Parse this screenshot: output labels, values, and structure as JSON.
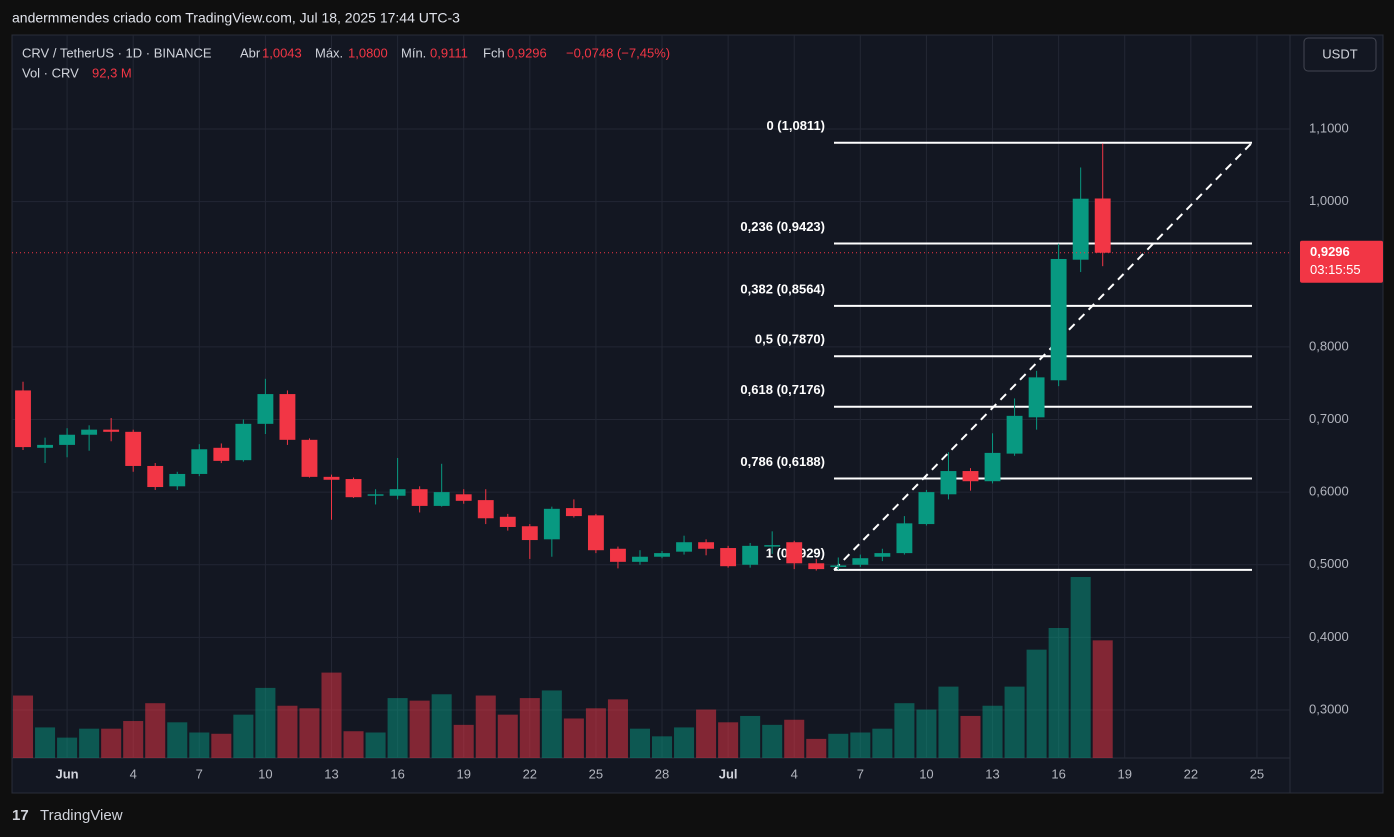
{
  "header": "andermmendes criado com TradingView.com, Jul 18, 2025 17:44 UTC-3",
  "legend": {
    "symbol": "CRV / TetherUS · 1D · BINANCE",
    "open_label": "Abr",
    "open": "1,0043",
    "high_label": "Máx.",
    "high": "1,0800",
    "low_label": "Mín.",
    "low": "0,9111",
    "close_label": "Fch",
    "close": "0,9296",
    "change": "−0,0748 (−7,45%)",
    "volume_label": "Vol · CRV",
    "volume": "92,3 M"
  },
  "currency_button": "USDT",
  "footer_logo": "TradingView",
  "chart_data": {
    "type": "candlestick",
    "colors": {
      "up": "#089981",
      "down": "#f23645"
    },
    "grid": true,
    "x": [
      "2025-05-30",
      "2025-05-31",
      "2025-06-01",
      "2025-06-02",
      "2025-06-03",
      "2025-06-04",
      "2025-06-05",
      "2025-06-06",
      "2025-06-07",
      "2025-06-08",
      "2025-06-09",
      "2025-06-10",
      "2025-06-11",
      "2025-06-12",
      "2025-06-13",
      "2025-06-14",
      "2025-06-15",
      "2025-06-16",
      "2025-06-17",
      "2025-06-18",
      "2025-06-19",
      "2025-06-20",
      "2025-06-21",
      "2025-06-22",
      "2025-06-23",
      "2025-06-24",
      "2025-06-25",
      "2025-06-26",
      "2025-06-27",
      "2025-06-28",
      "2025-06-29",
      "2025-06-30",
      "2025-07-01",
      "2025-07-02",
      "2025-07-03",
      "2025-07-04",
      "2025-07-05",
      "2025-07-06",
      "2025-07-07",
      "2025-07-08",
      "2025-07-09",
      "2025-07-10",
      "2025-07-11",
      "2025-07-12",
      "2025-07-13",
      "2025-07-14",
      "2025-07-15",
      "2025-07-16",
      "2025-07-17",
      "2025-07-18"
    ],
    "open": [
      0.74,
      0.661,
      0.665,
      0.679,
      0.686,
      0.683,
      0.636,
      0.608,
      0.625,
      0.661,
      0.644,
      0.694,
      0.735,
      0.672,
      0.621,
      0.618,
      0.595,
      0.595,
      0.604,
      0.581,
      0.597,
      0.589,
      0.566,
      0.553,
      0.535,
      0.578,
      0.568,
      0.522,
      0.504,
      0.511,
      0.518,
      0.531,
      0.523,
      0.5,
      0.525,
      0.531,
      0.502,
      0.497,
      0.5,
      0.511,
      0.516,
      0.556,
      0.597,
      0.629,
      0.615,
      0.653,
      0.703,
      0.754,
      0.92,
      1.0043
    ],
    "high": [
      0.752,
      0.675,
      0.688,
      0.692,
      0.702,
      0.686,
      0.64,
      0.628,
      0.666,
      0.667,
      0.7,
      0.756,
      0.74,
      0.674,
      0.624,
      0.62,
      0.604,
      0.647,
      0.608,
      0.639,
      0.604,
      0.604,
      0.57,
      0.556,
      0.58,
      0.59,
      0.57,
      0.525,
      0.52,
      0.519,
      0.54,
      0.535,
      0.526,
      0.53,
      0.546,
      0.533,
      0.508,
      0.51,
      0.514,
      0.522,
      0.567,
      0.603,
      0.655,
      0.633,
      0.681,
      0.729,
      0.767,
      0.942,
      1.047,
      1.08
    ],
    "low": [
      0.658,
      0.64,
      0.648,
      0.657,
      0.67,
      0.628,
      0.603,
      0.603,
      0.622,
      0.64,
      0.642,
      0.68,
      0.665,
      0.62,
      0.562,
      0.592,
      0.583,
      0.59,
      0.572,
      0.58,
      0.584,
      0.556,
      0.547,
      0.508,
      0.511,
      0.565,
      0.516,
      0.495,
      0.5,
      0.509,
      0.514,
      0.513,
      0.496,
      0.496,
      0.515,
      0.494,
      0.492,
      0.4929,
      0.497,
      0.505,
      0.514,
      0.554,
      0.59,
      0.602,
      0.612,
      0.65,
      0.686,
      0.746,
      0.903,
      0.9111
    ],
    "close": [
      0.662,
      0.665,
      0.679,
      0.686,
      0.683,
      0.636,
      0.607,
      0.625,
      0.659,
      0.643,
      0.694,
      0.735,
      0.672,
      0.621,
      0.617,
      0.593,
      0.597,
      0.604,
      0.581,
      0.6,
      0.588,
      0.564,
      0.552,
      0.534,
      0.577,
      0.567,
      0.52,
      0.504,
      0.511,
      0.516,
      0.531,
      0.522,
      0.498,
      0.526,
      0.527,
      0.502,
      0.494,
      0.499,
      0.509,
      0.516,
      0.557,
      0.6,
      0.629,
      0.615,
      0.654,
      0.705,
      0.758,
      0.921,
      1.004,
      0.9296
    ],
    "volume": [
      49,
      24,
      16,
      23,
      23,
      29,
      43,
      28,
      20,
      19,
      34,
      55,
      41,
      39,
      67,
      21,
      20,
      47,
      45,
      50,
      26,
      49,
      34,
      47,
      53,
      31,
      39,
      46,
      23,
      17,
      24,
      38,
      28,
      33,
      26,
      30,
      15,
      19,
      20,
      23,
      43,
      38,
      56,
      33,
      41,
      56,
      85,
      102,
      142,
      92.3
    ],
    "volume_value_labels": {
      "49": "92,3 M"
    },
    "last_price": {
      "value": 0.9296,
      "label": "0,9296",
      "countdown": "03:15:55"
    },
    "fib_levels": [
      {
        "value": 1.0811,
        "label": "0 (1,0811)"
      },
      {
        "value": 0.9423,
        "label": "0,236 (0,9423)"
      },
      {
        "value": 0.8564,
        "label": "0,382 (0,8564)"
      },
      {
        "value": 0.787,
        "label": "0,5 (0,7870)"
      },
      {
        "value": 0.7176,
        "label": "0,618 (0,7176)"
      },
      {
        "value": 0.6188,
        "label": "0,786 (0,6188)"
      },
      {
        "value": 0.4929,
        "label": "1 (0,4929)"
      }
    ],
    "ylim": [
      0.2339,
      1.2294
    ],
    "yticks": [
      {
        "value": 0.3,
        "label": "0,3000"
      },
      {
        "value": 0.4,
        "label": "0,4000"
      },
      {
        "value": 0.5,
        "label": "0,5000"
      },
      {
        "value": 0.6,
        "label": "0,6000"
      },
      {
        "value": 0.7,
        "label": "0,7000"
      },
      {
        "value": 0.8,
        "label": "0,8000"
      },
      {
        "value": 1.0,
        "label": "1,0000"
      },
      {
        "value": 1.1,
        "label": "1,1000"
      }
    ],
    "xlim": [
      "2025-05-30",
      "2025-07-26"
    ],
    "xticks": [
      {
        "value": "2025-06-01",
        "label": "Jun"
      },
      {
        "value": "2025-06-04",
        "label": "4"
      },
      {
        "value": "2025-06-07",
        "label": "7"
      },
      {
        "value": "2025-06-10",
        "label": "10"
      },
      {
        "value": "2025-06-13",
        "label": "13"
      },
      {
        "value": "2025-06-16",
        "label": "16"
      },
      {
        "value": "2025-06-19",
        "label": "19"
      },
      {
        "value": "2025-06-22",
        "label": "22"
      },
      {
        "value": "2025-06-25",
        "label": "25"
      },
      {
        "value": "2025-06-28",
        "label": "28"
      },
      {
        "value": "2025-07-01",
        "label": "Jul"
      },
      {
        "value": "2025-07-04",
        "label": "4"
      },
      {
        "value": "2025-07-07",
        "label": "7"
      },
      {
        "value": "2025-07-10",
        "label": "10"
      },
      {
        "value": "2025-07-13",
        "label": "13"
      },
      {
        "value": "2025-07-16",
        "label": "16"
      },
      {
        "value": "2025-07-19",
        "label": "19"
      },
      {
        "value": "2025-07-22",
        "label": "22"
      },
      {
        "value": "2025-07-25",
        "label": "25"
      }
    ]
  }
}
